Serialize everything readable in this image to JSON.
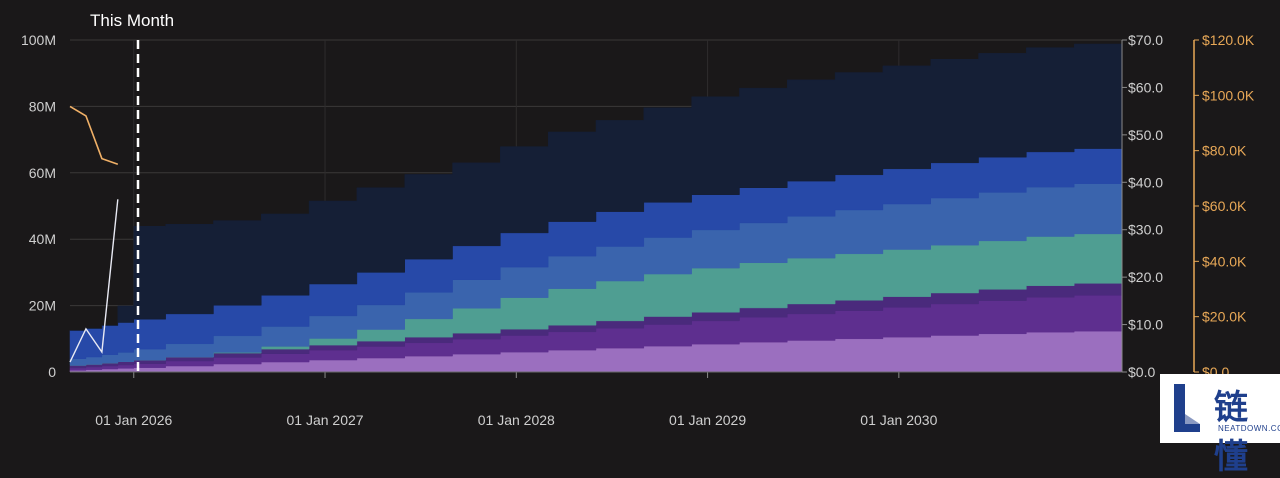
{
  "chart_data": {
    "type": "area",
    "annotation": "This Month",
    "x_ticks": [
      "01 Jan 2026",
      "01 Jan 2027",
      "01 Jan 2028",
      "01 Jan 2029",
      "01 Jan 2030"
    ],
    "x_range": [
      "2025-09",
      "2031-03"
    ],
    "annotation_date": "2025-12",
    "y_left": {
      "ticks": [
        "0",
        "20M",
        "40M",
        "60M",
        "80M",
        "100M"
      ],
      "range": [
        0,
        100000000
      ]
    },
    "y_right_price": {
      "ticks": [
        "$0.0",
        "$10.0",
        "$20.0",
        "$30.0",
        "$40.0",
        "$50.0",
        "$60.0",
        "$70.0"
      ],
      "range": [
        0,
        70
      ]
    },
    "y_right_mcap": {
      "ticks": [
        "$0.0",
        "$20.0K",
        "$40.0K",
        "$60.0K",
        "$80.0K",
        "$100.0K",
        "$120.0K"
      ],
      "range": [
        0,
        120000
      ]
    },
    "grid": true,
    "stack_dates": [
      "2025-09",
      "2025-10",
      "2025-11",
      "2025-12",
      "2026-01",
      "2026-03",
      "2026-06",
      "2026-09",
      "2026-12",
      "2027-03",
      "2027-06",
      "2027-09",
      "2027-12",
      "2028-03",
      "2028-06",
      "2028-09",
      "2028-12",
      "2029-03",
      "2029-06",
      "2029-09",
      "2029-12",
      "2030-03",
      "2030-06",
      "2030-09",
      "2030-12",
      "2031-03"
    ],
    "series": [
      {
        "values": [
          0.5,
          0.7,
          0.9,
          1.1,
          1.3,
          1.8,
          2.4,
          3.0,
          3.6,
          4.2,
          4.8,
          5.4,
          6.0,
          6.6,
          7.2,
          7.8,
          8.4,
          9.0,
          9.5,
          10.0,
          10.5,
          11.0,
          11.5,
          12.0,
          12.3,
          12.5
        ]
      },
      {
        "values": [
          0.7,
          0.8,
          0.9,
          1.0,
          1.2,
          1.5,
          2.0,
          2.5,
          3.0,
          3.5,
          4.0,
          4.5,
          5.0,
          5.5,
          6.0,
          6.5,
          7.0,
          7.5,
          8.0,
          8.5,
          9.0,
          9.5,
          10.0,
          10.5,
          10.8,
          11.0
        ]
      },
      {
        "values": [
          0.8,
          0.8,
          0.9,
          1.0,
          1.1,
          1.2,
          1.3,
          1.4,
          1.5,
          1.6,
          1.7,
          1.8,
          1.9,
          2.0,
          2.2,
          2.4,
          2.6,
          2.8,
          3.0,
          3.1,
          3.2,
          3.3,
          3.4,
          3.5,
          3.6,
          3.7
        ]
      },
      {
        "values": [
          0,
          0,
          0,
          0,
          0,
          0,
          0.2,
          0.8,
          2.0,
          3.5,
          5.5,
          7.5,
          9.5,
          11.0,
          12.0,
          12.8,
          13.3,
          13.6,
          13.8,
          14.0,
          14.2,
          14.4,
          14.6,
          14.8,
          14.9,
          15.0
        ]
      },
      {
        "values": [
          2.0,
          2.2,
          2.5,
          2.8,
          3.3,
          4.0,
          5.0,
          6.0,
          6.8,
          7.4,
          8.0,
          8.6,
          9.2,
          9.8,
          10.4,
          11.0,
          11.5,
          12.0,
          12.6,
          13.2,
          13.7,
          14.2,
          14.6,
          14.9,
          15.1,
          15.3
        ]
      },
      {
        "values": [
          8.5,
          8.6,
          8.8,
          9.0,
          9.0,
          9.0,
          9.2,
          9.4,
          9.6,
          9.8,
          10.0,
          10.2,
          10.3,
          10.4,
          10.5,
          10.6,
          10.6,
          10.6,
          10.6,
          10.6,
          10.6,
          10.6,
          10.6,
          10.6,
          10.6,
          10.6
        ]
      },
      {
        "values": [
          0,
          0,
          0,
          5.0,
          28.0,
          27.0,
          25.5,
          24.5,
          25.0,
          25.5,
          25.5,
          25.0,
          26.0,
          27.0,
          27.5,
          28.5,
          29.5,
          30.0,
          30.5,
          30.8,
          31.0,
          31.2,
          31.3,
          31.4,
          31.5,
          31.6
        ]
      }
    ],
    "price_line": {
      "dates": [
        "2025-09",
        "2025-10",
        "2025-11",
        "2025-12"
      ],
      "values": [
        56.0,
        54.0,
        45.0,
        43.8
      ]
    },
    "mcap_line": {
      "dates": [
        "2025-09",
        "2025-10",
        "2025-11",
        "2025-12"
      ],
      "values": [
        3.0,
        13.0,
        6.0,
        52.0
      ]
    },
    "colors": {
      "background": "#1a1819",
      "series": [
        "#9b6fbf",
        "#5e2f8f",
        "#4a2a7c",
        "#4f9e92",
        "#3a64ad",
        "#2749a8",
        "#151f36"
      ],
      "price_line": "#f0b067",
      "mcap_line": "#e9eaf4",
      "marker": "#ffffff",
      "axis_text": "#cfcfcf",
      "price_axis_text": "#e8a857"
    }
  },
  "logo": {
    "cn_text": "链懂",
    "en_text": "NEATDOWN.COM"
  }
}
